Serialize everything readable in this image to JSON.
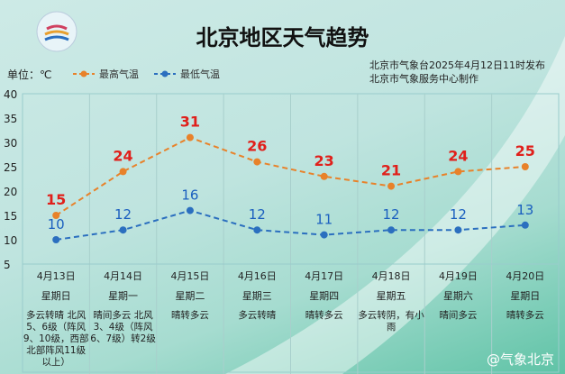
{
  "header": {
    "title": "北京地区天气趋势",
    "unit": "单位：℃",
    "publisher": "北京市气象台2025年4月12日11时发布",
    "producer": "北京市气象服务中心制作",
    "watermark": "@气象北京"
  },
  "colors": {
    "high": "#e8822a",
    "low": "#2b6fbf",
    "high_label": "#e0201b",
    "low_label": "#1a5fbf"
  },
  "chart_data": {
    "type": "line",
    "title": "北京地区天气趋势",
    "ylim": [
      5,
      40
    ],
    "yticks": [
      5,
      10,
      15,
      20,
      25,
      30,
      35,
      40
    ],
    "grid": true,
    "legend": "top-left",
    "categories": [
      "4月13日",
      "4月14日",
      "4月15日",
      "4月16日",
      "4月17日",
      "4月18日",
      "4月19日",
      "4月20日"
    ],
    "weekdays": [
      "星期日",
      "星期一",
      "星期二",
      "星期三",
      "星期四",
      "星期五",
      "星期六",
      "星期日"
    ],
    "conditions": [
      "多云转晴 北风5、6级（阵风9、10级，西部北部阵风11级以上）",
      "晴间多云 北风3、4级（阵风6、7级）转2级",
      "晴转多云",
      "多云转晴",
      "晴转多云",
      "多云转阴，有小雨",
      "晴间多云",
      "晴转多云"
    ],
    "series": [
      {
        "name": "最高气温",
        "values": [
          15,
          24,
          31,
          26,
          23,
          21,
          24,
          25
        ]
      },
      {
        "name": "最低气温",
        "values": [
          10,
          12,
          16,
          12,
          11,
          12,
          12,
          13
        ]
      }
    ]
  }
}
